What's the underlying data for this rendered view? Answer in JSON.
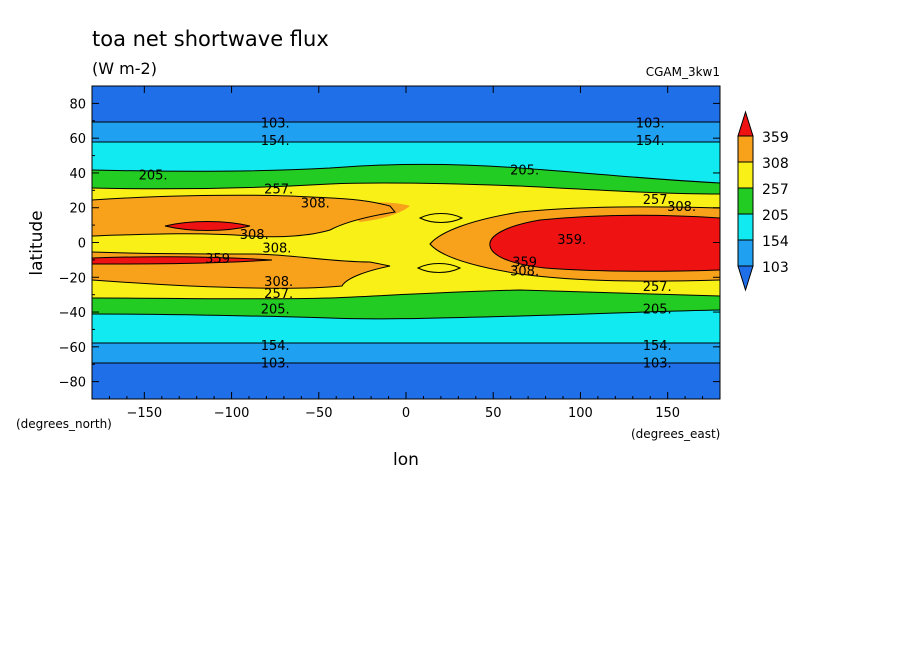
{
  "chart_data": {
    "type": "contour",
    "title": "toa net shortwave flux",
    "units": "(W m-2)",
    "dataset": "CGAM_3kw1",
    "xlabel": "lon",
    "ylabel": "latitude",
    "x_units_label": "(degrees_east)",
    "y_units_label": "(degrees_north)",
    "xlim": [
      -180,
      180
    ],
    "ylim": [
      -90,
      90
    ],
    "x_ticks": [
      -150,
      -100,
      -50,
      0,
      50,
      100,
      150
    ],
    "y_ticks": [
      80,
      60,
      40,
      20,
      0,
      -20,
      -40,
      -60,
      -80
    ],
    "contour_levels": [
      103,
      154,
      205,
      257,
      308,
      359
    ],
    "colorbar": {
      "labels": [
        "359",
        "308",
        "257",
        "205",
        "154",
        "103"
      ],
      "colors": [
        "#1e6fe8",
        "#1fa0f0",
        "#10eaf0",
        "#22cc22",
        "#f8f016",
        "#f8a21c",
        "#ee1212"
      ]
    },
    "contour_labels": [
      {
        "text": "103.",
        "lon": -75,
        "lat": 69
      },
      {
        "text": "103.",
        "lon": 140,
        "lat": 69
      },
      {
        "text": "154.",
        "lon": -75,
        "lat": 59
      },
      {
        "text": "154.",
        "lon": 140,
        "lat": 59
      },
      {
        "text": "205.",
        "lon": -145,
        "lat": 39
      },
      {
        "text": "205.",
        "lon": 68,
        "lat": 42
      },
      {
        "text": "257.",
        "lon": -73,
        "lat": 31
      },
      {
        "text": "257.",
        "lon": 144,
        "lat": 25
      },
      {
        "text": "308.",
        "lon": -52,
        "lat": 23
      },
      {
        "text": "308.",
        "lon": 158,
        "lat": 21
      },
      {
        "text": "308.",
        "lon": -87,
        "lat": 5
      },
      {
        "text": "308.",
        "lon": -74,
        "lat": -3
      },
      {
        "text": "308.",
        "lon": -73,
        "lat": -22
      },
      {
        "text": "308.",
        "lon": 68,
        "lat": -16
      },
      {
        "text": "359.",
        "lon": 95,
        "lat": 2
      },
      {
        "text": "359",
        "lon": -108,
        "lat": -9
      },
      {
        "text": "359",
        "lon": 68,
        "lat": -11
      },
      {
        "text": "257.",
        "lon": -73,
        "lat": -29
      },
      {
        "text": "257.",
        "lon": 144,
        "lat": -25
      },
      {
        "text": "205.",
        "lon": -75,
        "lat": -38
      },
      {
        "text": "205.",
        "lon": 144,
        "lat": -38
      },
      {
        "text": "154.",
        "lon": -75,
        "lat": -59
      },
      {
        "text": "154.",
        "lon": 144,
        "lat": -59
      },
      {
        "text": "103.",
        "lon": -75,
        "lat": -69
      },
      {
        "text": "103.",
        "lon": 144,
        "lat": -69
      }
    ]
  }
}
